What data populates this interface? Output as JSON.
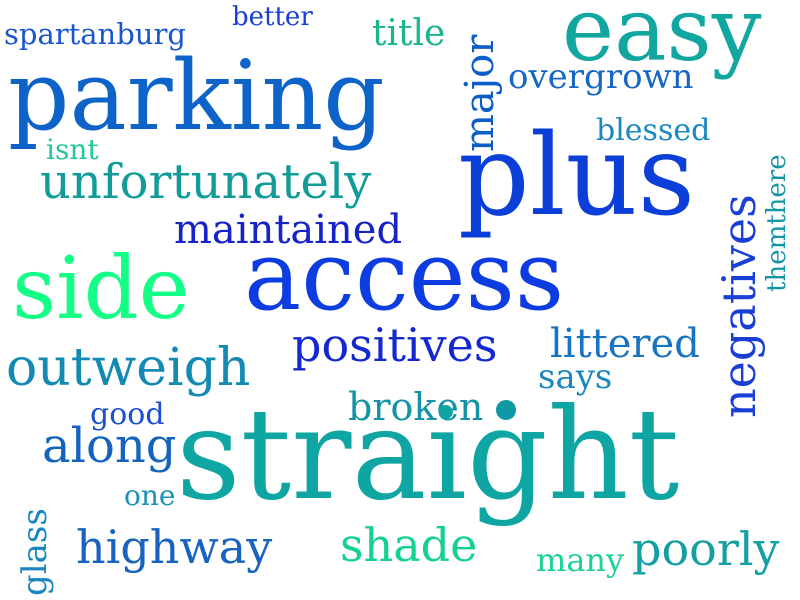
{
  "words": {
    "spartanburg": {
      "text": "spartanburg",
      "color": "#1a56cc"
    },
    "better": {
      "text": "better",
      "color": "#1a3fd6"
    },
    "title": {
      "text": "title",
      "color": "#19b58f"
    },
    "easy": {
      "text": "easy",
      "color": "#11a7a0"
    },
    "parking": {
      "text": "parking",
      "color": "#0e63c9"
    },
    "major": {
      "text": "major",
      "color": "#0b5ec8"
    },
    "overgrown": {
      "text": "overgrown",
      "color": "#1667c4"
    },
    "isnt": {
      "text": "isnt",
      "color": "#22c79a"
    },
    "blessed": {
      "text": "blessed",
      "color": "#1a87be"
    },
    "unfortunately": {
      "text": "unfortunately",
      "color": "#119c9a"
    },
    "plus": {
      "text": "plus",
      "color": "#0b3fd8"
    },
    "negatives": {
      "text": "negatives",
      "color": "#1a3fd6"
    },
    "themthere": {
      "text": "themthere",
      "color": "#1296a4"
    },
    "maintained": {
      "text": "maintained",
      "color": "#1722c7"
    },
    "side": {
      "text": "side",
      "color": "#14ff86"
    },
    "access": {
      "text": "access",
      "color": "#0d3ce0"
    },
    "outweigh": {
      "text": "outweigh",
      "color": "#128ab4"
    },
    "positives": {
      "text": "positives",
      "color": "#1428cf"
    },
    "littered": {
      "text": "littered",
      "color": "#1873c0"
    },
    "says": {
      "text": "says",
      "color": "#1a88bb"
    },
    "broken": {
      "text": "broken",
      "color": "#1492a6"
    },
    "good": {
      "text": "good",
      "color": "#1a4fd0"
    },
    "along": {
      "text": "along",
      "color": "#1464bd"
    },
    "straight": {
      "text": "straight",
      "color": "#0ea5a3"
    },
    "one": {
      "text": "one",
      "color": "#1b93b6"
    },
    "glass": {
      "text": "glass",
      "color": "#1a86c0"
    },
    "highway": {
      "text": "highway",
      "color": "#1763bf"
    },
    "shade": {
      "text": "shade",
      "color": "#15d18f"
    },
    "many": {
      "text": "many",
      "color": "#1ad29a"
    },
    "poorly": {
      "text": "poorly",
      "color": "#149fa3"
    }
  },
  "dot_color": "#0e9aa4"
}
